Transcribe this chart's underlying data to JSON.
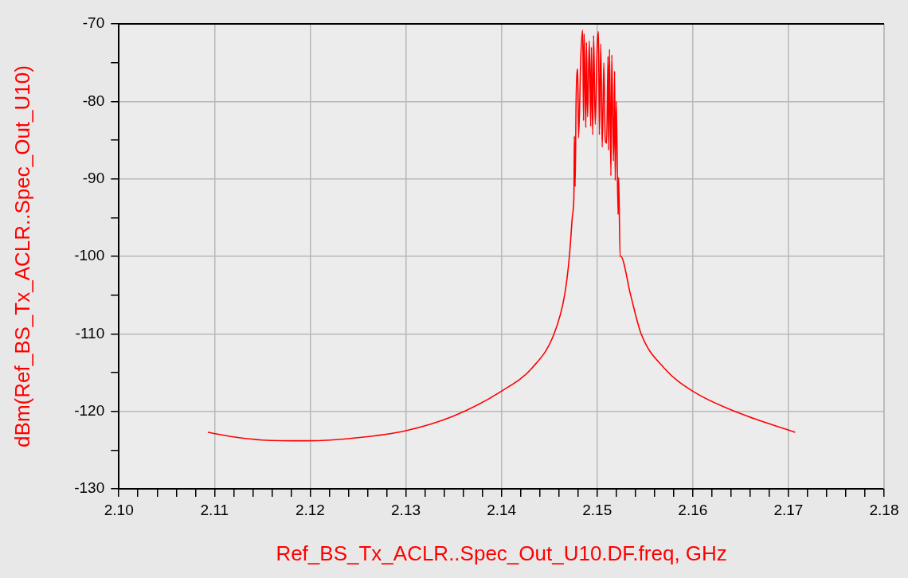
{
  "chart_data": {
    "type": "line",
    "xlabel": "Ref_BS_Tx_ACLR..Spec_Out_U10.DF.freq, GHz",
    "ylabel": "dBm(Ref_BS_Tx_ACLR..Spec_Out_U10)",
    "xlim": [
      2.1,
      2.18
    ],
    "ylim": [
      -130,
      -70
    ],
    "xticks": [
      {
        "value": 2.1,
        "label": "2.10"
      },
      {
        "value": 2.102,
        "label": null
      },
      {
        "value": 2.104,
        "label": null
      },
      {
        "value": 2.106,
        "label": null
      },
      {
        "value": 2.108,
        "label": null
      },
      {
        "value": 2.11,
        "label": "2.11"
      },
      {
        "value": 2.112,
        "label": null
      },
      {
        "value": 2.114,
        "label": null
      },
      {
        "value": 2.116,
        "label": null
      },
      {
        "value": 2.118,
        "label": null
      },
      {
        "value": 2.12,
        "label": "2.12"
      },
      {
        "value": 2.122,
        "label": null
      },
      {
        "value": 2.124,
        "label": null
      },
      {
        "value": 2.126,
        "label": null
      },
      {
        "value": 2.128,
        "label": null
      },
      {
        "value": 2.13,
        "label": "2.13"
      },
      {
        "value": 2.132,
        "label": null
      },
      {
        "value": 2.134,
        "label": null
      },
      {
        "value": 2.136,
        "label": null
      },
      {
        "value": 2.138,
        "label": null
      },
      {
        "value": 2.14,
        "label": "2.14"
      },
      {
        "value": 2.142,
        "label": null
      },
      {
        "value": 2.144,
        "label": null
      },
      {
        "value": 2.146,
        "label": null
      },
      {
        "value": 2.148,
        "label": null
      },
      {
        "value": 2.15,
        "label": "2.15"
      },
      {
        "value": 2.152,
        "label": null
      },
      {
        "value": 2.154,
        "label": null
      },
      {
        "value": 2.156,
        "label": null
      },
      {
        "value": 2.158,
        "label": null
      },
      {
        "value": 2.16,
        "label": "2.16"
      },
      {
        "value": 2.162,
        "label": null
      },
      {
        "value": 2.164,
        "label": null
      },
      {
        "value": 2.166,
        "label": null
      },
      {
        "value": 2.168,
        "label": null
      },
      {
        "value": 2.17,
        "label": "2.17"
      },
      {
        "value": 2.172,
        "label": null
      },
      {
        "value": 2.174,
        "label": null
      },
      {
        "value": 2.176,
        "label": null
      },
      {
        "value": 2.178,
        "label": null
      },
      {
        "value": 2.18,
        "label": "2.18"
      }
    ],
    "yticks": [
      -130,
      {
        "value": -125,
        "label": null
      },
      -120,
      {
        "value": -115,
        "label": null
      },
      -110,
      {
        "value": -105,
        "label": null
      },
      -100,
      {
        "value": -95,
        "label": null
      },
      -90,
      {
        "value": -85,
        "label": null
      },
      -80,
      {
        "value": -75,
        "label": null
      },
      -70
    ],
    "grid": true,
    "legend": false,
    "marker": "none",
    "line_style": "solid",
    "series": [
      {
        "color": "#ff0000",
        "x": [
          2.1093,
          2.112,
          2.115,
          2.1197,
          2.125,
          2.13,
          2.135,
          2.14,
          2.1432,
          2.1455,
          2.1466,
          2.1471,
          2.1474,
          2.14755,
          2.14758,
          2.14762,
          2.1477,
          2.1478,
          2.14797,
          2.14806,
          2.1483,
          2.14849,
          2.14858,
          2.14864,
          2.14882,
          2.14888,
          2.149,
          2.14918,
          2.14933,
          2.1494,
          2.14954,
          2.14963,
          2.1498,
          2.15,
          2.15014,
          2.15023,
          2.15038,
          2.15053,
          2.1507,
          2.15085,
          2.15099,
          2.15114,
          2.1512,
          2.15129,
          2.15144,
          2.15153,
          2.15171,
          2.15183,
          2.15189,
          2.152,
          2.15219,
          2.15225,
          2.1524,
          2.15246,
          2.1535,
          2.1546,
          2.157,
          2.16,
          2.165,
          2.1707
        ],
        "values": [
          -122.7,
          -123.3,
          -123.7,
          -123.8,
          -123.4,
          -122.5,
          -120.6,
          -117.4,
          -114.4,
          -110,
          -105,
          -100,
          -95,
          -93,
          -91.6,
          -84.5,
          -91,
          -80,
          -75.8,
          -84.7,
          -74,
          -70.8,
          -82.5,
          -71.3,
          -83.4,
          -72.4,
          -82,
          -72.2,
          -83.2,
          -73,
          -84.3,
          -71.5,
          -83,
          -73,
          -71.0,
          -84.3,
          -72.6,
          -85.9,
          -75,
          -85,
          -85.4,
          -74.2,
          -86.3,
          -73.3,
          -89.6,
          -74.0,
          -87.7,
          -76.1,
          -90.2,
          -80,
          -94.6,
          -89.8,
          -100,
          -100,
          -105,
          -110,
          -114.4,
          -117.4,
          -120.3,
          -122.7
        ]
      }
    ]
  }
}
